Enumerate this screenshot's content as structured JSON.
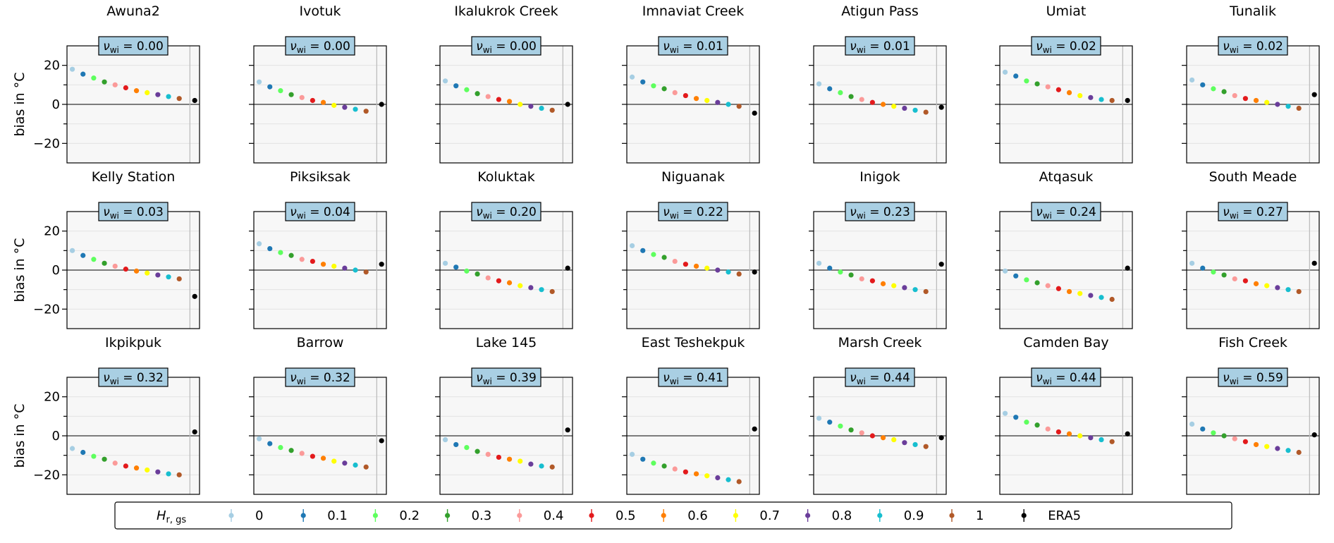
{
  "chart_data": {
    "type": "scatter",
    "ylabel": "bias in °C",
    "ylim": [
      -30,
      30
    ],
    "yticks": [
      -20,
      0,
      20
    ],
    "x_positions": 12,
    "nu_label": "ν",
    "nu_sub": "wi",
    "legend": {
      "title": "H",
      "title_sub": "r, gs",
      "labels": [
        "0",
        "0.1",
        "0.2",
        "0.3",
        "0.4",
        "0.5",
        "0.6",
        "0.7",
        "0.8",
        "0.9",
        "1",
        "ERA5"
      ]
    },
    "colors": [
      "#a6cee3",
      "#1f78b4",
      "#5eff5e",
      "#33a02c",
      "#fb9a99",
      "#e31a1c",
      "#ff7f00",
      "#ffff00",
      "#6a3d9a",
      "#17becf",
      "#b15928",
      "#000000"
    ],
    "panels": [
      {
        "title": "Awuna2",
        "nu": "0.00",
        "series": [
          18,
          15.5,
          13.5,
          11.5,
          10,
          8.5,
          7,
          6,
          5,
          4,
          3
        ],
        "era5": 2
      },
      {
        "title": "Ivotuk",
        "nu": "0.00",
        "series": [
          11.5,
          9,
          7,
          5,
          3.5,
          2,
          1,
          -0.5,
          -1.5,
          -2.5,
          -3.5
        ],
        "era5": 0
      },
      {
        "title": "Ikalukrok Creek",
        "nu": "0.00",
        "series": [
          12,
          9.5,
          7.5,
          5.5,
          4,
          2.5,
          1.5,
          0,
          -1,
          -2,
          -3
        ],
        "era5": 0
      },
      {
        "title": "Imnaviat Creek",
        "nu": "0.01",
        "series": [
          14,
          11.5,
          9.5,
          8,
          6,
          4.5,
          3,
          2,
          1,
          0,
          -1
        ],
        "era5": -4.5
      },
      {
        "title": "Atigun Pass",
        "nu": "0.01",
        "series": [
          10.5,
          8,
          6,
          4,
          2.5,
          1,
          0,
          -1,
          -2,
          -3,
          -4
        ],
        "era5": -1.5
      },
      {
        "title": "Umiat",
        "nu": "0.02",
        "series": [
          16.5,
          14.5,
          12,
          10.5,
          9,
          7.5,
          6,
          4.5,
          3.5,
          2.5,
          2
        ],
        "era5": 2
      },
      {
        "title": "Tunalik",
        "nu": "0.02",
        "series": [
          12.5,
          10,
          8,
          6.5,
          4.5,
          3,
          2,
          1,
          0,
          -1,
          -2
        ],
        "era5": 5
      },
      {
        "title": "Kelly Station",
        "nu": "0.03",
        "series": [
          10,
          7.5,
          5.5,
          3.5,
          2,
          0.5,
          -0.5,
          -1.5,
          -2.5,
          -3.5,
          -4.5
        ],
        "era5": -13.5
      },
      {
        "title": "Piksiksak",
        "nu": "0.04",
        "series": [
          13.5,
          11,
          9,
          7.5,
          5.5,
          4.5,
          3,
          2,
          1,
          0,
          -1
        ],
        "era5": 3
      },
      {
        "title": "Koluktak",
        "nu": "0.20",
        "series": [
          3.5,
          1.5,
          -0.5,
          -2,
          -4,
          -5.5,
          -6.5,
          -8,
          -9,
          -10,
          -11
        ],
        "era5": 1
      },
      {
        "title": "Niguanak",
        "nu": "0.22",
        "series": [
          12.5,
          10,
          8,
          6.5,
          4.5,
          3,
          2,
          1,
          0,
          -1,
          -2
        ],
        "era5": -1
      },
      {
        "title": "Inigok",
        "nu": "0.23",
        "series": [
          3.5,
          1,
          -1,
          -2.5,
          -4.5,
          -5.5,
          -7,
          -8,
          -9,
          -10,
          -11
        ],
        "era5": 3
      },
      {
        "title": "Atqasuk",
        "nu": "0.24",
        "series": [
          -0.5,
          -3,
          -5,
          -6.5,
          -8,
          -9.5,
          -11,
          -12,
          -13,
          -14,
          -15
        ],
        "era5": 1
      },
      {
        "title": "South Meade",
        "nu": "0.27",
        "series": [
          3.5,
          1,
          -1,
          -2.5,
          -4.5,
          -5.5,
          -7,
          -8,
          -9,
          -10,
          -11
        ],
        "era5": 3.5
      },
      {
        "title": "Ikpikpuk",
        "nu": "0.32",
        "series": [
          -6.5,
          -8.5,
          -10.5,
          -12,
          -14,
          -15.5,
          -16.5,
          -17.5,
          -18.5,
          -19.5,
          -20
        ],
        "era5": 2
      },
      {
        "title": "Barrow",
        "nu": "0.32",
        "series": [
          -1.5,
          -4,
          -6,
          -7.5,
          -9,
          -10.5,
          -11.5,
          -13,
          -14,
          -15,
          -16
        ],
        "era5": -2.5
      },
      {
        "title": "Lake 145",
        "nu": "0.39",
        "series": [
          -2,
          -4.5,
          -6,
          -8,
          -9.5,
          -11,
          -12,
          -13,
          -14.5,
          -15.5,
          -16
        ],
        "era5": 3
      },
      {
        "title": "East Teshekpuk",
        "nu": "0.41",
        "series": [
          -9.5,
          -12,
          -14,
          -15.5,
          -17,
          -18.5,
          -19.5,
          -20.5,
          -21.5,
          -22.5,
          -23.5
        ],
        "era5": 3.5
      },
      {
        "title": "Marsh Creek",
        "nu": "0.44",
        "series": [
          9,
          7,
          5,
          3,
          1.5,
          0,
          -1,
          -2,
          -3.5,
          -4.5,
          -5.5
        ],
        "era5": -1
      },
      {
        "title": "Camden Bay",
        "nu": "0.44",
        "series": [
          11.5,
          9.5,
          7,
          5.5,
          3.5,
          2,
          1,
          0,
          -1,
          -2,
          -3
        ],
        "era5": 1
      },
      {
        "title": "Fish Creek",
        "nu": "0.59",
        "series": [
          6,
          3.5,
          1.5,
          0,
          -1.5,
          -3,
          -4.5,
          -5.5,
          -6.5,
          -7.5,
          -8.5
        ],
        "era5": 0.5
      }
    ]
  }
}
